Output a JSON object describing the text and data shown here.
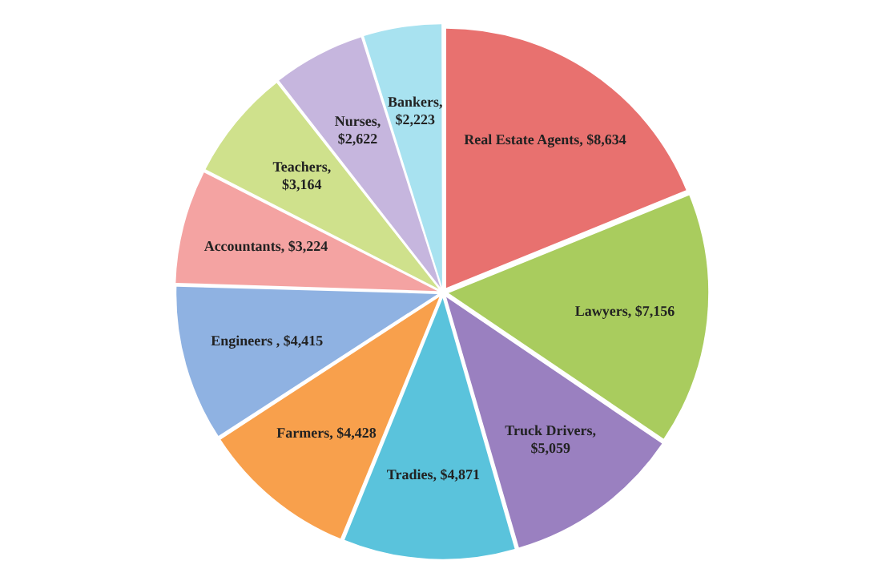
{
  "chart_data": {
    "type": "pie",
    "categories": [
      "Real Estate Agents",
      "Lawyers",
      "Truck Drivers",
      "Tradies",
      "Farmers",
      "Engineers",
      "Accountants",
      "Teachers",
      "Nurses",
      "Bankers"
    ],
    "values": [
      8634,
      7156,
      5059,
      4871,
      4428,
      4415,
      3224,
      3164,
      2622,
      2223
    ],
    "value_labels": [
      ", $8,634",
      ", $7,156",
      ",\n$5,059",
      ", $4,871",
      ", $4,428",
      " , $4,415",
      ", $3,224",
      ",\n$3,164",
      ",\n$2,622",
      ",\n$2,223"
    ],
    "colors": [
      "#e8716f",
      "#a9cc5e",
      "#9a80c0",
      "#5ac3dc",
      "#f8a04c",
      "#8fb2e2",
      "#f4a3a2",
      "#cfe18c",
      "#c6b6de",
      "#a8e2f0"
    ],
    "legend": false
  }
}
